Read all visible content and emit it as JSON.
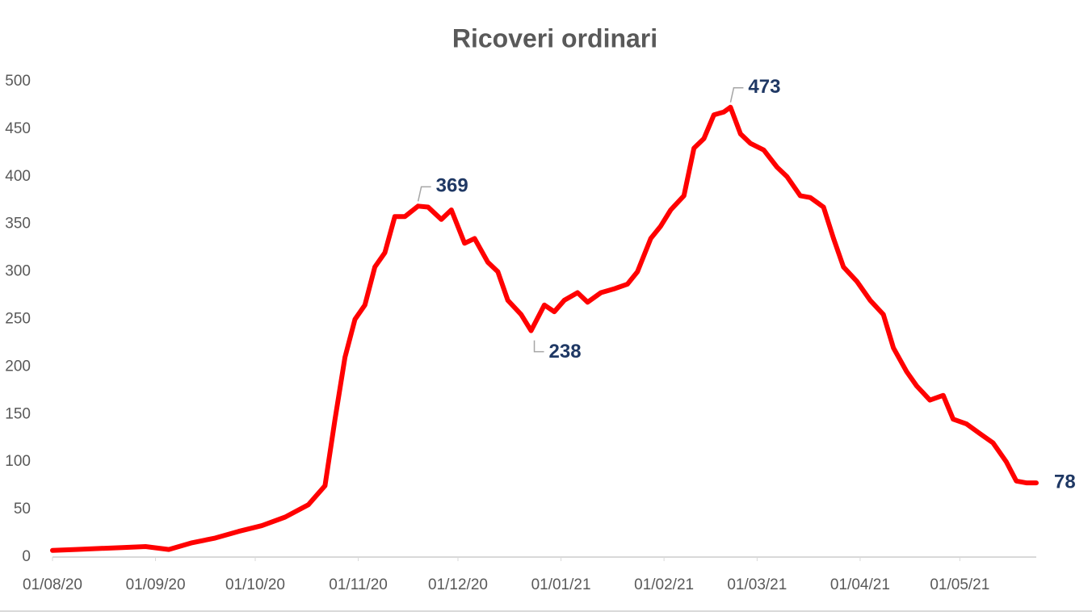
{
  "chart_data": {
    "type": "line",
    "title": "Ricoveri ordinari",
    "x": [
      "01/08/20",
      "08/08/20",
      "15/08/20",
      "22/08/20",
      "29/08/20",
      "05/09/20",
      "12/09/20",
      "19/09/20",
      "26/09/20",
      "03/10/20",
      "10/10/20",
      "17/10/20",
      "22/10/20",
      "25/10/20",
      "28/10/20",
      "31/10/20",
      "03/11/20",
      "06/11/20",
      "09/11/20",
      "12/11/20",
      "15/11/20",
      "19/11/20",
      "22/11/20",
      "26/11/20",
      "29/11/20",
      "03/12/20",
      "06/12/20",
      "10/12/20",
      "13/12/20",
      "16/12/20",
      "20/12/20",
      "23/12/20",
      "27/12/20",
      "30/12/20",
      "02/01/21",
      "06/01/21",
      "09/01/21",
      "13/01/21",
      "17/01/21",
      "21/01/21",
      "24/01/21",
      "28/01/21",
      "31/01/21",
      "03/02/21",
      "07/02/21",
      "10/02/21",
      "13/02/21",
      "16/02/21",
      "19/02/21",
      "21/02/21",
      "24/02/21",
      "27/02/21",
      "03/03/21",
      "07/03/21",
      "10/03/21",
      "14/03/21",
      "17/03/21",
      "21/03/21",
      "24/03/21",
      "27/03/21",
      "31/03/21",
      "04/04/21",
      "08/04/21",
      "11/04/21",
      "15/04/21",
      "18/04/21",
      "22/04/21",
      "26/04/21",
      "29/04/21",
      "03/05/21",
      "07/05/21",
      "11/05/21",
      "15/05/21",
      "18/05/21",
      "21/05/21",
      "24/05/21"
    ],
    "series": [
      {
        "color": "#ff0000",
        "values": [
          7,
          8,
          9,
          10,
          11,
          8,
          15,
          20,
          27,
          33,
          42,
          55,
          75,
          145,
          210,
          250,
          265,
          305,
          320,
          358,
          358,
          369,
          368,
          355,
          365,
          330,
          335,
          310,
          300,
          270,
          255,
          238,
          265,
          258,
          270,
          278,
          268,
          278,
          282,
          287,
          300,
          335,
          348,
          365,
          380,
          430,
          440,
          465,
          468,
          473,
          445,
          435,
          428,
          410,
          400,
          380,
          378,
          368,
          335,
          305,
          290,
          270,
          255,
          220,
          195,
          180,
          165,
          170,
          145,
          140,
          130,
          120,
          100,
          80,
          78,
          78
        ]
      }
    ],
    "data_label_indices": [
      21,
      31,
      49,
      75
    ],
    "xlim": [
      "01/08/20",
      "24/05/21"
    ],
    "xticks": [
      "01/08/20",
      "01/09/20",
      "01/10/20",
      "01/11/20",
      "01/12/20",
      "01/01/21",
      "01/02/21",
      "01/03/21",
      "01/04/21",
      "01/05/21"
    ],
    "ylim": [
      0,
      500
    ],
    "yticks": [
      0,
      50,
      100,
      150,
      200,
      250,
      300,
      350,
      400,
      450,
      500
    ],
    "grid": false
  }
}
